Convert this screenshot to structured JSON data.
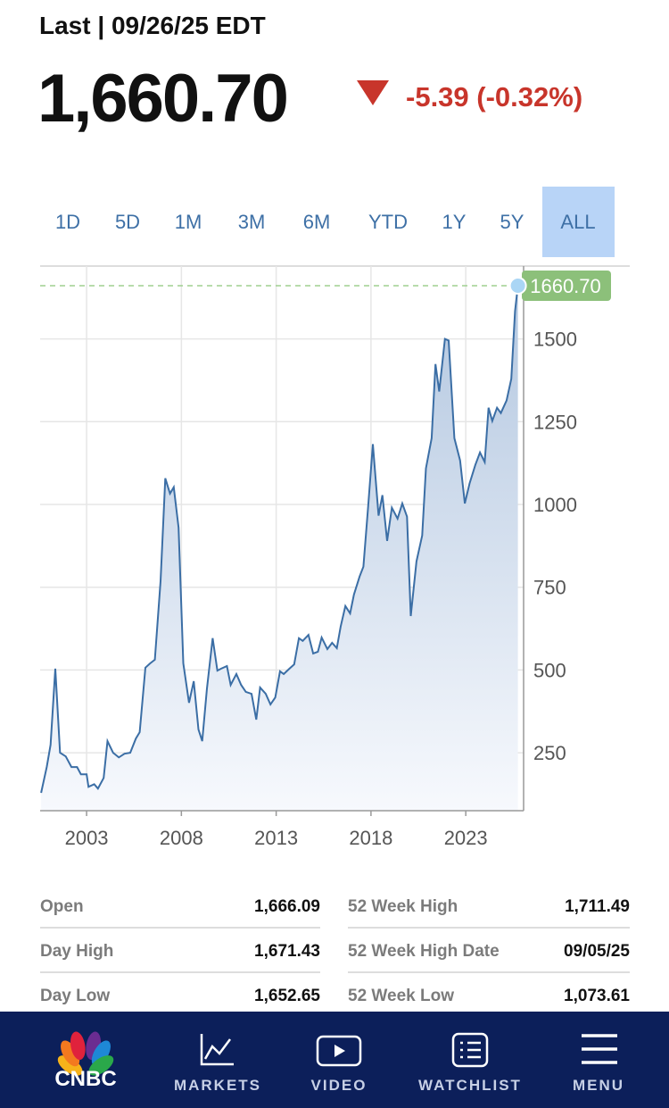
{
  "header": {
    "last": "Last | 09/26/25 EDT",
    "price": "1,660.70",
    "change": "-5.39 (-0.32%)"
  },
  "tabs": [
    {
      "label": "1D"
    },
    {
      "label": "5D"
    },
    {
      "label": "1M"
    },
    {
      "label": "3M"
    },
    {
      "label": "6M"
    },
    {
      "label": "YTD"
    },
    {
      "label": "1Y"
    },
    {
      "label": "5Y"
    },
    {
      "label": "ALL",
      "selected": true
    }
  ],
  "chart_data": {
    "type": "line",
    "color": "#3b6ea5",
    "grid": true,
    "x": [
      2000.6,
      2000.9,
      2001.1,
      2001.35,
      2001.6,
      2001.9,
      2002.2,
      2002.5,
      2002.7,
      2003.0,
      2003.1,
      2003.4,
      2003.6,
      2003.9,
      2004.1,
      2004.4,
      2004.7,
      2005.0,
      2005.3,
      2005.6,
      2005.8,
      2006.1,
      2006.35,
      2006.6,
      2006.9,
      2007.15,
      2007.4,
      2007.6,
      2007.85,
      2008.1,
      2008.4,
      2008.65,
      2008.9,
      2009.1,
      2009.35,
      2009.65,
      2009.9,
      2010.1,
      2010.4,
      2010.6,
      2010.9,
      2011.15,
      2011.4,
      2011.7,
      2011.95,
      2012.15,
      2012.45,
      2012.7,
      2012.95,
      2013.2,
      2013.4,
      2013.7,
      2013.95,
      2014.2,
      2014.4,
      2014.7,
      2014.95,
      2015.2,
      2015.4,
      2015.7,
      2015.95,
      2016.2,
      2016.4,
      2016.65,
      2016.9,
      2017.1,
      2017.4,
      2017.6,
      2017.85,
      2018.1,
      2018.4,
      2018.6,
      2018.85,
      2019.1,
      2019.4,
      2019.65,
      2019.9,
      2020.1,
      2020.4,
      2020.7,
      2020.9,
      2021.2,
      2021.4,
      2021.6,
      2021.9,
      2022.1,
      2022.4,
      2022.7,
      2022.95,
      2023.2,
      2023.5,
      2023.75,
      2024.0,
      2024.2,
      2024.4,
      2024.65,
      2024.85,
      2025.15,
      2025.4,
      2025.6,
      2025.75
    ],
    "values": [
      129,
      207,
      274,
      504,
      250,
      239,
      207,
      207,
      185,
      185,
      147,
      155,
      142,
      174,
      285,
      250,
      236,
      247,
      250,
      293,
      312,
      507,
      520,
      531,
      768,
      1079,
      1033,
      1052,
      930,
      520,
      401,
      466,
      320,
      285,
      444,
      596,
      498,
      504,
      512,
      455,
      488,
      455,
      434,
      428,
      350,
      447,
      428,
      396,
      417,
      496,
      488,
      504,
      517,
      596,
      588,
      606,
      550,
      555,
      598,
      563,
      582,
      566,
      631,
      693,
      671,
      728,
      782,
      812,
      993,
      1182,
      966,
      1028,
      890,
      990,
      957,
      1003,
      963,
      663,
      828,
      906,
      1109,
      1200,
      1424,
      1341,
      1500,
      1495,
      1200,
      1133,
      1003,
      1063,
      1119,
      1157,
      1128,
      1292,
      1252,
      1292,
      1276,
      1314,
      1379,
      1584,
      1660.7
    ],
    "xlim": [
      2000.55,
      2026.05
    ],
    "xticks": [
      2003,
      2008,
      2013,
      2018,
      2023
    ],
    "ylim": [
      75,
      1720
    ],
    "yticks": [
      250,
      500,
      750,
      1000,
      1250,
      1500
    ],
    "annotation": {
      "value": 1660.7,
      "label": "1660.70"
    }
  },
  "stats": {
    "left": [
      {
        "label": "Open",
        "value": "1,666.09"
      },
      {
        "label": "Day High",
        "value": "1,671.43"
      },
      {
        "label": "Day Low",
        "value": "1,652.65"
      }
    ],
    "right": [
      {
        "label": "52 Week High",
        "value": "1,711.49"
      },
      {
        "label": "52 Week High Date",
        "value": "09/05/25"
      },
      {
        "label": "52 Week Low",
        "value": "1,073.61"
      }
    ]
  },
  "nav": {
    "logo": "CNBC",
    "items": [
      "MARKETS",
      "VIDEO",
      "WATCHLIST",
      "MENU"
    ]
  }
}
